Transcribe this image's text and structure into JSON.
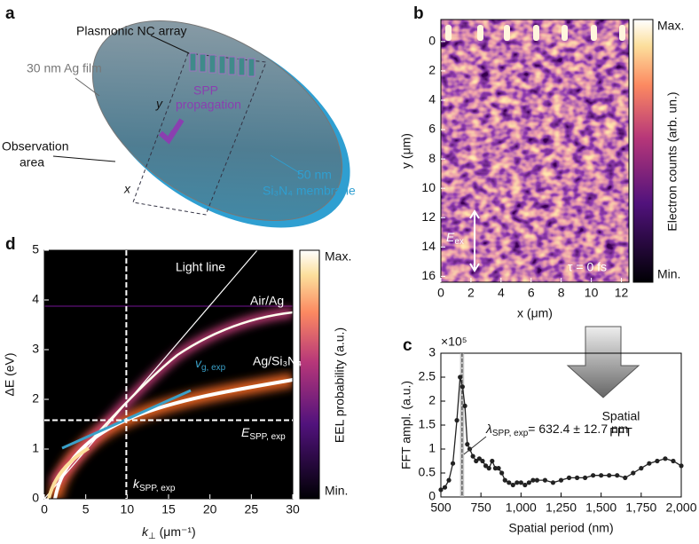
{
  "panel_labels": [
    "a",
    "b",
    "c",
    "d"
  ],
  "diagram": {
    "array_label": "Plasmonic NC array",
    "film_label": "30 nm Ag film",
    "propagation": [
      "SPP",
      "propagation"
    ],
    "y_axis": "y",
    "x_axis": "x",
    "observation": [
      "Observation",
      "area"
    ],
    "membrane": [
      "50 nm",
      "Si₃N₄ membrane"
    ]
  },
  "chart_data": [
    {
      "type": "heatmap",
      "xlabel": "x (μm)",
      "ylabel": "y (μm)",
      "xlim": [
        0,
        12.5
      ],
      "ylim": [
        16.4,
        -1.5
      ],
      "xticks": [
        0,
        2,
        4,
        6,
        8,
        10,
        12
      ],
      "yticks": [
        0,
        2,
        4,
        6,
        8,
        10,
        12,
        14,
        16
      ],
      "colorbar": {
        "label": "Electron counts (arb. un.)",
        "max": "Max.",
        "min": "Min."
      },
      "annotations": {
        "field": {
          "main": "E",
          "sub": "ex"
        },
        "time": "τ = 0 fs"
      }
    },
    {
      "type": "line",
      "xlabel": "Spatial period (nm)",
      "ylabel": "FFT ampl. (a.u.)",
      "multiplier": "×10⁵",
      "color": "#222222",
      "x": [
        500,
        525,
        550,
        575,
        600,
        620,
        635,
        650,
        665,
        680,
        700,
        720,
        740,
        760,
        780,
        800,
        820,
        840,
        860,
        880,
        900,
        925,
        950,
        975,
        1000,
        1025,
        1050,
        1075,
        1100,
        1150,
        1200,
        1250,
        1300,
        1350,
        1400,
        1450,
        1500,
        1550,
        1600,
        1650,
        1700,
        1750,
        1800,
        1850,
        1900,
        1950,
        2000
      ],
      "values": [
        0.15,
        0.2,
        0.35,
        0.7,
        1.6,
        2.5,
        2.3,
        1.9,
        1.1,
        1.0,
        0.85,
        0.75,
        0.8,
        0.75,
        0.65,
        0.6,
        0.75,
        0.6,
        0.6,
        0.5,
        0.35,
        0.3,
        0.25,
        0.3,
        0.3,
        0.25,
        0.3,
        0.35,
        0.35,
        0.35,
        0.3,
        0.35,
        0.4,
        0.4,
        0.4,
        0.45,
        0.45,
        0.45,
        0.45,
        0.4,
        0.5,
        0.6,
        0.7,
        0.75,
        0.8,
        0.75,
        0.65
      ],
      "xlim": [
        500,
        2000
      ],
      "ylim": [
        0,
        3
      ],
      "xticks": [
        500,
        750,
        {
          "value": 1000,
          "label": "1,000"
        },
        {
          "value": 1250,
          "label": "1,250"
        },
        {
          "value": 1500,
          "label": "1,500"
        },
        {
          "value": 1750,
          "label": "1,750"
        },
        {
          "value": 2000,
          "label": "2,000"
        }
      ],
      "yticks": [
        0,
        0.5,
        1,
        1.5,
        2,
        2.5,
        3
      ],
      "marker_x": 632.4,
      "marker_err": 12.7,
      "annotation": {
        "main": "λ",
        "sub": "SPP, exp",
        "rest": "= 632.4 ± 12.7 nm"
      },
      "arrow_label": [
        "Spatial",
        "FFT"
      ]
    },
    {
      "type": "heatmap",
      "xlabel": {
        "main": "k",
        "sub": "⊥",
        "rest": " (μm⁻¹)"
      },
      "ylabel": "ΔE (eV)",
      "xlim": [
        0,
        30
      ],
      "ylim": [
        0,
        5
      ],
      "xticks": [
        0,
        5,
        10,
        15,
        20,
        25,
        30
      ],
      "yticks": [
        0,
        1,
        2,
        3,
        4,
        5
      ],
      "colorbar": {
        "label": "EEL probability (a.u.)",
        "max": "Max.",
        "min": "Min."
      },
      "vline": 9.9,
      "hline": 1.58,
      "annotations": {
        "light_line": "Light line",
        "air": "Air/Ag",
        "si": "Ag/Si₃N₄",
        "vg": {
          "main": "v",
          "sub": "g, exp"
        },
        "e": {
          "main": "E",
          "sub": "SPP, exp"
        },
        "k": {
          "main": "k",
          "sub": "SPP, exp"
        }
      }
    }
  ]
}
